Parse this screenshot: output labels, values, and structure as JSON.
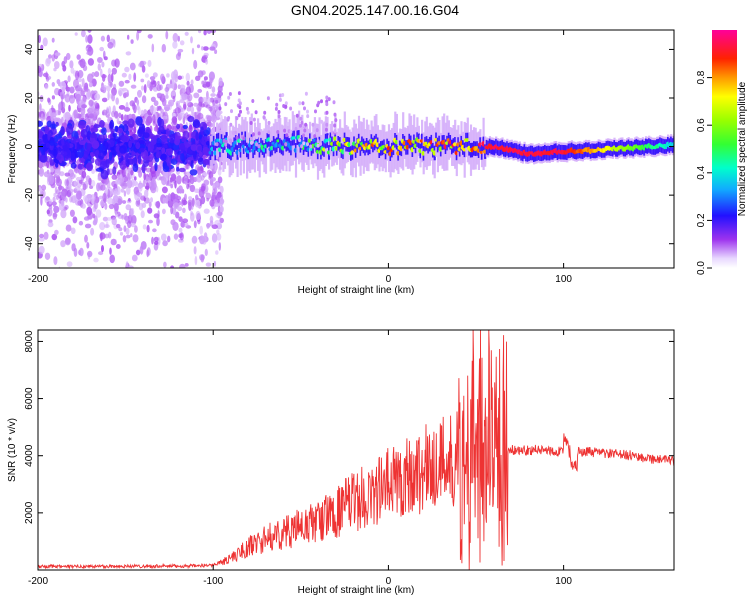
{
  "title": "GN04.2025.147.00.16.G04",
  "chart_data": [
    {
      "type": "heatmap",
      "xlabel": "Height of straight line (km)",
      "ylabel": "Frequency (Hz)",
      "xlim": [
        -200,
        163
      ],
      "ylim": [
        -50,
        48
      ],
      "xticks": [
        -200,
        -100,
        0,
        100
      ],
      "yticks": [
        -40,
        -20,
        0,
        20,
        40
      ],
      "colorbar": {
        "label": "Normalized spectral amplitude",
        "range": [
          0,
          1
        ],
        "ticks": [
          0.0,
          0.2,
          0.4,
          0.6,
          0.8
        ],
        "tick_labels": [
          "0.0",
          "0.2",
          "0.4",
          "0.6",
          "0.8"
        ]
      },
      "grid": false,
      "ridge": [
        {
          "x": -100,
          "f": 0,
          "amp": 0.45
        },
        {
          "x": -50,
          "f": 1,
          "amp": 0.55
        },
        {
          "x": -20,
          "f": 0,
          "amp": 0.85
        },
        {
          "x": 30,
          "f": 0,
          "amp": 0.95
        },
        {
          "x": 60,
          "f": 0,
          "amp": 0.95
        },
        {
          "x": 80,
          "f": -3,
          "amp": 0.95
        },
        {
          "x": 100,
          "f": -2,
          "amp": 0.95
        },
        {
          "x": 150,
          "f": 0,
          "amp": 0.5
        },
        {
          "x": 163,
          "f": 1,
          "amp": 0.4
        }
      ]
    },
    {
      "type": "line",
      "xlabel": "Height of straight line (km)",
      "ylabel": "SNR (10 * v/v)",
      "xlim": [
        -200,
        163
      ],
      "ylim": [
        0,
        8400
      ],
      "xticks": [
        -200,
        -100,
        0,
        100
      ],
      "yticks": [
        2000,
        4000,
        6000,
        8000
      ],
      "color": "#ee3333",
      "grid": false,
      "series": [
        {
          "x": [
            -200,
            -150,
            -110,
            -100,
            -90,
            -80,
            -70,
            -60,
            -50,
            -40,
            -30,
            -20,
            -10,
            0,
            10,
            20,
            30,
            40,
            45,
            50,
            55,
            60,
            65,
            70,
            80,
            90,
            100,
            110,
            120,
            130,
            140,
            150,
            163
          ],
          "y": [
            120,
            130,
            140,
            180,
            400,
            800,
            1100,
            1300,
            1500,
            1700,
            2000,
            2400,
            2600,
            3000,
            3300,
            3500,
            3800,
            4000,
            4200,
            4000,
            4100,
            3900,
            4100,
            4200,
            4200,
            4200,
            4150,
            4150,
            4100,
            4050,
            4000,
            3900,
            3800
          ]
        }
      ]
    }
  ]
}
